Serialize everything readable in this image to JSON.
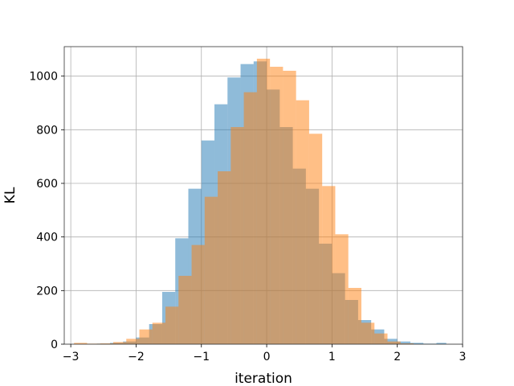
{
  "chart_data": {
    "type": "histogram",
    "title": "",
    "xlabel": "iteration",
    "ylabel": "KL",
    "xlim": [
      -3.1,
      3.0
    ],
    "ylim": [
      0,
      1110
    ],
    "xticks": [
      -3,
      -2,
      -1,
      0,
      1,
      2,
      3
    ],
    "yticks": [
      0,
      200,
      400,
      600,
      800,
      1000
    ],
    "grid": true,
    "series": [
      {
        "color": "#1f77b4",
        "alpha": 0.5,
        "bins": [
          [
            -2.78,
            -2.6,
            1
          ],
          [
            -2.6,
            -2.4,
            2
          ],
          [
            -2.4,
            -2.2,
            5
          ],
          [
            -2.2,
            -2.0,
            10
          ],
          [
            -2.0,
            -1.8,
            25
          ],
          [
            -1.8,
            -1.6,
            75
          ],
          [
            -1.6,
            -1.4,
            195
          ],
          [
            -1.4,
            -1.2,
            395
          ],
          [
            -1.2,
            -1.0,
            580
          ],
          [
            -1.0,
            -0.8,
            760
          ],
          [
            -0.8,
            -0.6,
            895
          ],
          [
            -0.6,
            -0.4,
            995
          ],
          [
            -0.4,
            -0.2,
            1045
          ],
          [
            -0.2,
            0.0,
            1055
          ],
          [
            0.0,
            0.2,
            950
          ],
          [
            0.2,
            0.4,
            810
          ],
          [
            0.4,
            0.6,
            655
          ],
          [
            0.6,
            0.8,
            580
          ],
          [
            0.8,
            1.0,
            375
          ],
          [
            1.0,
            1.2,
            265
          ],
          [
            1.2,
            1.4,
            165
          ],
          [
            1.4,
            1.6,
            90
          ],
          [
            1.6,
            1.8,
            55
          ],
          [
            1.8,
            2.0,
            20
          ],
          [
            2.0,
            2.2,
            10
          ],
          [
            2.2,
            2.4,
            5
          ],
          [
            2.4,
            2.6,
            2
          ],
          [
            2.6,
            2.75,
            5
          ]
        ]
      },
      {
        "color": "#ff7f0e",
        "alpha": 0.5,
        "bins": [
          [
            -2.95,
            -2.75,
            5
          ],
          [
            -2.75,
            -2.55,
            2
          ],
          [
            -2.55,
            -2.35,
            3
          ],
          [
            -2.35,
            -2.15,
            8
          ],
          [
            -2.15,
            -1.95,
            20
          ],
          [
            -1.95,
            -1.75,
            55
          ],
          [
            -1.75,
            -1.55,
            80
          ],
          [
            -1.55,
            -1.35,
            140
          ],
          [
            -1.35,
            -1.15,
            255
          ],
          [
            -1.15,
            -0.95,
            370
          ],
          [
            -0.95,
            -0.75,
            550
          ],
          [
            -0.75,
            -0.55,
            645
          ],
          [
            -0.55,
            -0.35,
            810
          ],
          [
            -0.35,
            -0.15,
            940
          ],
          [
            -0.15,
            0.05,
            1065
          ],
          [
            0.05,
            0.25,
            1035
          ],
          [
            0.25,
            0.45,
            1020
          ],
          [
            0.45,
            0.65,
            910
          ],
          [
            0.65,
            0.85,
            785
          ],
          [
            0.85,
            1.05,
            590
          ],
          [
            1.05,
            1.25,
            410
          ],
          [
            1.25,
            1.45,
            210
          ],
          [
            1.45,
            1.65,
            80
          ],
          [
            1.65,
            1.85,
            40
          ],
          [
            1.85,
            2.05,
            10
          ],
          [
            2.05,
            2.25,
            3
          ]
        ]
      }
    ]
  }
}
